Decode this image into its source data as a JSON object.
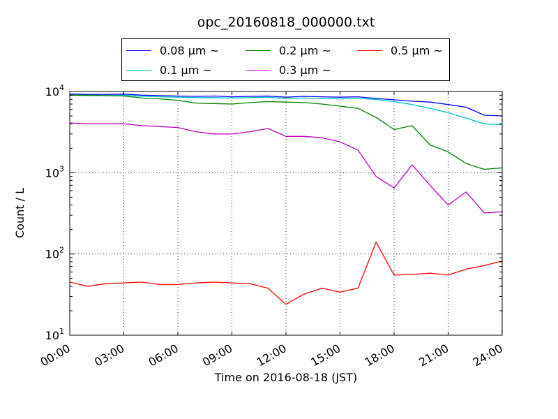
{
  "chart_data": {
    "type": "line",
    "title": "opc_20160818_000000.txt",
    "xlabel": "Time on 2016-08-18 (JST)",
    "ylabel": "Count / L",
    "yscale": "log",
    "ylim": [
      10,
      10000
    ],
    "xlim": [
      "00:00",
      "24:00"
    ],
    "x_ticks": [
      "00:00",
      "03:00",
      "06:00",
      "09:00",
      "12:00",
      "15:00",
      "18:00",
      "21:00",
      "24:00"
    ],
    "y_ticks": [
      {
        "value": 10,
        "base": "10",
        "exp": "1"
      },
      {
        "value": 100,
        "base": "10",
        "exp": "2"
      },
      {
        "value": 1000,
        "base": "10",
        "exp": "3"
      },
      {
        "value": 10000,
        "base": "10",
        "exp": "4"
      }
    ],
    "grid": true,
    "legend_position": "top-center, above axes",
    "x": [
      "00:00",
      "01:00",
      "02:00",
      "03:00",
      "04:00",
      "05:00",
      "06:00",
      "07:00",
      "08:00",
      "09:00",
      "10:00",
      "11:00",
      "12:00",
      "13:00",
      "14:00",
      "15:00",
      "16:00",
      "17:00",
      "18:00",
      "19:00",
      "20:00",
      "21:00",
      "22:00",
      "23:00",
      "24:00"
    ],
    "series": [
      {
        "name": "0.08 μm ~",
        "color": "#0000ff",
        "values": [
          9300,
          9200,
          9200,
          9300,
          9000,
          8900,
          8800,
          8700,
          8800,
          8600,
          8700,
          8800,
          8500,
          8700,
          8600,
          8500,
          8600,
          8200,
          7900,
          7600,
          7400,
          6900,
          6400,
          5100,
          5000
        ]
      },
      {
        "name": "0.1 μm ~",
        "color": "#00bfbf",
        "values": [
          9000,
          8900,
          8900,
          9000,
          8700,
          8600,
          8500,
          8400,
          8400,
          8300,
          8400,
          8500,
          8200,
          8300,
          8200,
          8100,
          8200,
          8000,
          7500,
          6900,
          6200,
          5500,
          4700,
          4000,
          3900
        ]
      },
      {
        "name": "0.2 μm ~",
        "color": "#008000",
        "values": [
          9000,
          9000,
          8900,
          8800,
          8300,
          8100,
          7800,
          7200,
          7100,
          7000,
          7300,
          7500,
          7400,
          7300,
          7000,
          6600,
          6200,
          4800,
          3400,
          3800,
          2200,
          1800,
          1300,
          1100,
          1150
        ]
      },
      {
        "name": "0.3 μm ~",
        "color": "#bf00bf",
        "values": [
          4100,
          4000,
          4000,
          4000,
          3800,
          3700,
          3600,
          3200,
          3000,
          3000,
          3200,
          3500,
          2800,
          2800,
          2700,
          2400,
          1900,
          900,
          650,
          1250,
          700,
          400,
          580,
          320,
          330
        ]
      },
      {
        "name": "0.5 μm ~",
        "color": "#ff0000",
        "values": [
          45,
          40,
          43,
          44,
          45,
          42,
          42,
          44,
          45,
          44,
          43,
          38,
          24,
          32,
          38,
          34,
          38,
          140,
          55,
          56,
          58,
          55,
          65,
          72,
          82
        ]
      }
    ]
  }
}
